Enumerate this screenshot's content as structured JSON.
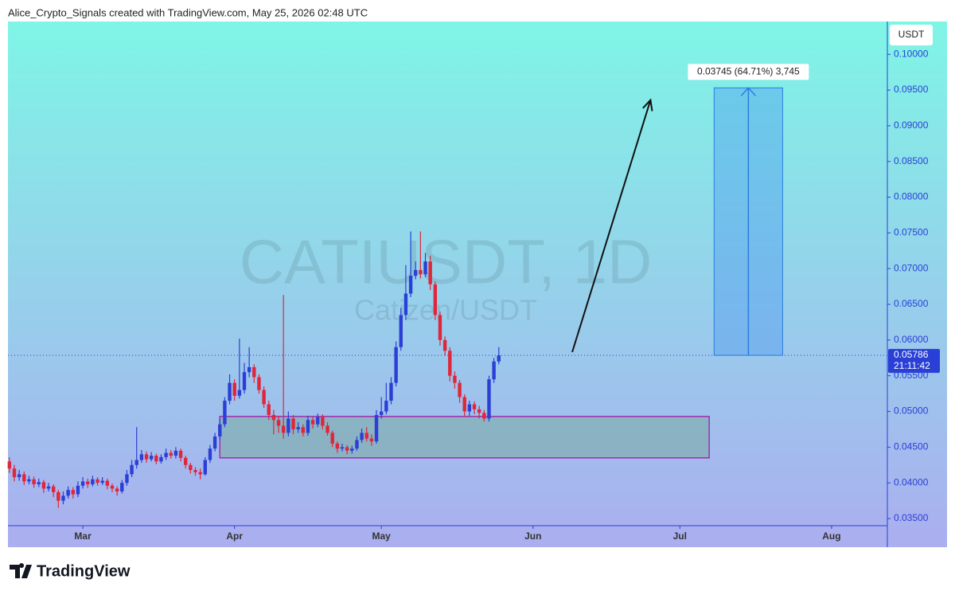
{
  "header": "Alice_Crypto_Signals created with TradingView.com, May 25, 2026 02:48 UTC",
  "logo": "TradingView",
  "chart_data": {
    "type": "candlestick",
    "title": "CATIUSDT, 1D",
    "subtitle": "Catizen/USDT",
    "currency": "USDT",
    "up_color": "#2b3fd6",
    "down_color": "#e0263b",
    "grid": false,
    "xlim": [
      -0.3,
      179.4
    ],
    "xticks": [
      {
        "value": 15,
        "label": "Mar"
      },
      {
        "value": 46,
        "label": "Apr"
      },
      {
        "value": 76,
        "label": "May"
      },
      {
        "value": 107,
        "label": "Jun"
      },
      {
        "value": 137,
        "label": "Jul"
      },
      {
        "value": 168,
        "label": "Aug"
      }
    ],
    "ylim": [
      0.034,
      0.1046
    ],
    "yticks": [
      {
        "value": 0.035,
        "label": "0.03500"
      },
      {
        "value": 0.04,
        "label": "0.04000"
      },
      {
        "value": 0.045,
        "label": "0.04500"
      },
      {
        "value": 0.05,
        "label": "0.05000"
      },
      {
        "value": 0.055,
        "label": "0.05500"
      },
      {
        "value": 0.06,
        "label": "0.06000"
      },
      {
        "value": 0.065,
        "label": "0.06500"
      },
      {
        "value": 0.07,
        "label": "0.07000"
      },
      {
        "value": 0.075,
        "label": "0.07500"
      },
      {
        "value": 0.08,
        "label": "0.08000"
      },
      {
        "value": 0.085,
        "label": "0.08500"
      },
      {
        "value": 0.09,
        "label": "0.09000"
      },
      {
        "value": 0.095,
        "label": "0.09500"
      },
      {
        "value": 0.1,
        "label": "0.10000"
      }
    ],
    "open": [
      0.043,
      0.042,
      0.0408,
      0.0412,
      0.0402,
      0.0405,
      0.0398,
      0.0401,
      0.0392,
      0.0395,
      0.0387,
      0.0375,
      0.0382,
      0.039,
      0.0384,
      0.0396,
      0.0402,
      0.0398,
      0.0405,
      0.04,
      0.0403,
      0.0396,
      0.0392,
      0.0388,
      0.04,
      0.0412,
      0.0425,
      0.0432,
      0.044,
      0.0433,
      0.0438,
      0.043,
      0.0436,
      0.0442,
      0.0438,
      0.0445,
      0.0435,
      0.0425,
      0.0418,
      0.0415,
      0.0412,
      0.0432,
      0.0448,
      0.0465,
      0.0482,
      0.0515,
      0.054,
      0.0522,
      0.053,
      0.0555,
      0.0562,
      0.0548,
      0.053,
      0.051,
      0.0495,
      0.0488,
      0.048,
      0.047,
      0.049,
      0.0475,
      0.0478,
      0.047,
      0.0488,
      0.0482,
      0.0492,
      0.048,
      0.047,
      0.0455,
      0.0448,
      0.045,
      0.0445,
      0.0448,
      0.046,
      0.047,
      0.0462,
      0.0458,
      0.0495,
      0.05,
      0.0515,
      0.054,
      0.059,
      0.0635,
      0.0665,
      0.069,
      0.0698,
      0.0692,
      0.071,
      0.0678,
      0.0635,
      0.06,
      0.0585,
      0.055,
      0.054,
      0.052,
      0.05,
      0.051,
      0.0503,
      0.0498,
      0.049,
      0.0545,
      0.057
    ],
    "high": [
      0.0436,
      0.0425,
      0.0418,
      0.0416,
      0.041,
      0.0409,
      0.0406,
      0.0404,
      0.04,
      0.0398,
      0.039,
      0.0388,
      0.0395,
      0.0394,
      0.0402,
      0.0408,
      0.0406,
      0.041,
      0.0408,
      0.0408,
      0.0406,
      0.0399,
      0.0395,
      0.0404,
      0.0418,
      0.0432,
      0.0478,
      0.0446,
      0.0444,
      0.0443,
      0.0441,
      0.044,
      0.0448,
      0.0446,
      0.045,
      0.0448,
      0.0438,
      0.0428,
      0.0422,
      0.042,
      0.0436,
      0.0453,
      0.047,
      0.049,
      0.052,
      0.0552,
      0.0545,
      0.0602,
      0.0568,
      0.059,
      0.0566,
      0.0552,
      0.0535,
      0.0515,
      0.0502,
      0.0494,
      0.0663,
      0.05,
      0.0495,
      0.0485,
      0.0482,
      0.0494,
      0.0492,
      0.0497,
      0.0496,
      0.0485,
      0.0473,
      0.0458,
      0.0455,
      0.0453,
      0.0452,
      0.0465,
      0.0476,
      0.0478,
      0.0468,
      0.0502,
      0.052,
      0.054,
      0.0548,
      0.0598,
      0.0645,
      0.0705,
      0.0752,
      0.071,
      0.0752,
      0.0722,
      0.0718,
      0.0682,
      0.064,
      0.0605,
      0.059,
      0.0556,
      0.0544,
      0.0524,
      0.0515,
      0.0514,
      0.0508,
      0.0502,
      0.055,
      0.0575,
      0.059
    ],
    "low": [
      0.0414,
      0.0402,
      0.0403,
      0.0397,
      0.0398,
      0.0393,
      0.0394,
      0.0386,
      0.0388,
      0.038,
      0.0365,
      0.037,
      0.0378,
      0.0378,
      0.038,
      0.0392,
      0.0393,
      0.0395,
      0.0396,
      0.0397,
      0.0391,
      0.0387,
      0.0382,
      0.0385,
      0.0396,
      0.0408,
      0.042,
      0.0428,
      0.0428,
      0.043,
      0.0426,
      0.0427,
      0.0432,
      0.0434,
      0.0434,
      0.043,
      0.042,
      0.0413,
      0.041,
      0.0405,
      0.041,
      0.0428,
      0.0444,
      0.046,
      0.0478,
      0.051,
      0.0515,
      0.0518,
      0.0525,
      0.0548,
      0.054,
      0.0525,
      0.0505,
      0.0488,
      0.0468,
      0.047,
      0.0462,
      0.0465,
      0.0468,
      0.047,
      0.0465,
      0.0466,
      0.0476,
      0.0478,
      0.0475,
      0.0466,
      0.045,
      0.0442,
      0.0444,
      0.044,
      0.0441,
      0.0445,
      0.0456,
      0.0458,
      0.0452,
      0.0455,
      0.049,
      0.0496,
      0.051,
      0.0535,
      0.0585,
      0.0628,
      0.066,
      0.0685,
      0.0686,
      0.0688,
      0.067,
      0.0628,
      0.0592,
      0.0578,
      0.0542,
      0.0532,
      0.0512,
      0.0492,
      0.0494,
      0.0496,
      0.049,
      0.0486,
      0.0486,
      0.054,
      0.0566
    ],
    "close": [
      0.042,
      0.0408,
      0.0412,
      0.0402,
      0.0405,
      0.0398,
      0.0401,
      0.0392,
      0.0395,
      0.0387,
      0.0375,
      0.0382,
      0.039,
      0.0384,
      0.0396,
      0.0402,
      0.0398,
      0.0405,
      0.04,
      0.0403,
      0.0396,
      0.0392,
      0.0388,
      0.04,
      0.0412,
      0.0425,
      0.0432,
      0.044,
      0.0433,
      0.0438,
      0.043,
      0.0436,
      0.0442,
      0.0438,
      0.0445,
      0.0435,
      0.0425,
      0.0418,
      0.0415,
      0.0412,
      0.0432,
      0.0448,
      0.0465,
      0.0482,
      0.0515,
      0.054,
      0.0522,
      0.053,
      0.0555,
      0.0562,
      0.0548,
      0.053,
      0.051,
      0.0495,
      0.0488,
      0.048,
      0.047,
      0.049,
      0.0475,
      0.0478,
      0.047,
      0.0488,
      0.0482,
      0.0492,
      0.048,
      0.047,
      0.0455,
      0.0448,
      0.045,
      0.0445,
      0.0448,
      0.046,
      0.047,
      0.0462,
      0.0458,
      0.0495,
      0.05,
      0.0515,
      0.054,
      0.059,
      0.0635,
      0.0665,
      0.069,
      0.0698,
      0.0692,
      0.071,
      0.0678,
      0.0635,
      0.06,
      0.0585,
      0.055,
      0.054,
      0.052,
      0.05,
      0.051,
      0.0503,
      0.0498,
      0.049,
      0.0545,
      0.057,
      0.05786
    ],
    "last_price": 0.05786,
    "countdown": "21:11:42",
    "support_zone": {
      "x": [
        43,
        143
      ],
      "y": [
        0.0435,
        0.0493
      ]
    },
    "arrow": {
      "x": [
        115,
        131
      ],
      "y": [
        0.0583,
        0.0936
      ]
    },
    "measure": {
      "label": "0.03745 (64.71%) 3,745",
      "change": 0.03745,
      "x": [
        144,
        158
      ]
    }
  }
}
